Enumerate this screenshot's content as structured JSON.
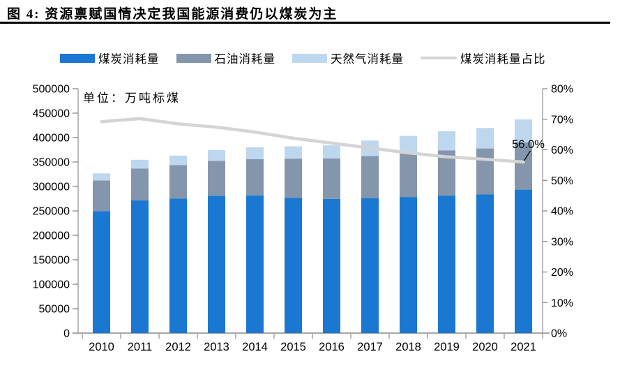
{
  "header": {
    "title": "图 4:  资源禀赋国情决定我国能源消费仍以煤炭为主"
  },
  "chart_data": {
    "type": "bar",
    "stacked": true,
    "title": "",
    "unit_label": "单位：万吨标煤",
    "categories": [
      "2010",
      "2011",
      "2012",
      "2013",
      "2014",
      "2015",
      "2016",
      "2017",
      "2018",
      "2019",
      "2020",
      "2021"
    ],
    "series": [
      {
        "key": "coal",
        "name": "煤炭消耗量",
        "color": "#1a78d2",
        "values": [
          249568,
          271704,
          275465,
          281000,
          281844,
          276964,
          274608,
          276231,
          278436,
          281281,
          283541,
          293440
        ]
      },
      {
        "key": "oil",
        "name": "石油消耗量",
        "color": "#8496ac",
        "values": [
          62753,
          65023,
          68363,
          71292,
          74102,
          79877,
          82559,
          86151,
          89194,
          92623,
          94181,
          96940
        ]
      },
      {
        "key": "gas",
        "name": "天然气消耗量",
        "color": "#bdd7ee",
        "values": [
          14426,
          17804,
          19303,
          22096,
          23987,
          25179,
          26931,
          31452,
          35866,
          38999,
          41858,
          46636
        ]
      }
    ],
    "line_series": {
      "key": "coal_share",
      "name": "煤炭消耗量占比",
      "color": "#d4d4d4",
      "axis": "right",
      "values": [
        69.2,
        70.2,
        68.5,
        67.4,
        65.8,
        63.8,
        62.2,
        60.6,
        59.0,
        57.7,
        56.9,
        56.0
      ]
    },
    "left_axis": {
      "min": 0,
      "max": 500000,
      "step": 50000
    },
    "right_axis": {
      "min": 0,
      "max": 80,
      "step": 10,
      "suffix": "%"
    },
    "annotation": {
      "text": "56.0%",
      "category": "2021",
      "value": 56.0
    },
    "legend_position": "top",
    "grid": false,
    "axis_color": "#a6a6a6",
    "tick_label_color": "#000000"
  }
}
